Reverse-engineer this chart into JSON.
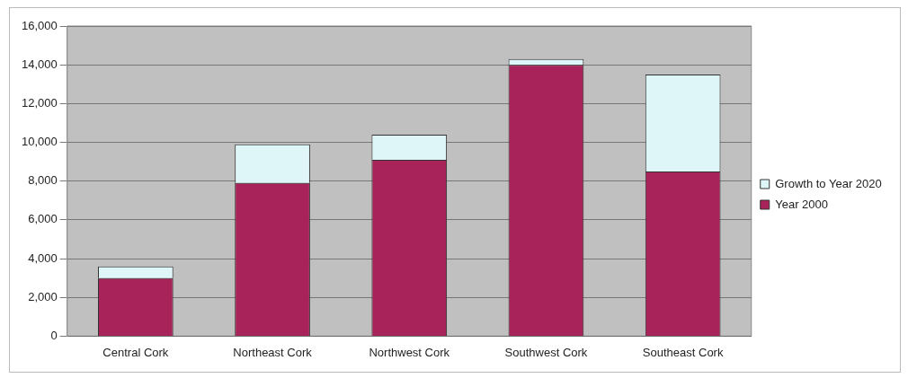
{
  "chart_data": {
    "type": "bar",
    "stacked": true,
    "categories": [
      "Central Cork",
      "Northeast Cork",
      "Northwest Cork",
      "Southwest Cork",
      "Southeast Cork"
    ],
    "series": [
      {
        "name": "Year 2000",
        "color": "#a8235a",
        "values": [
          3000,
          7900,
          9100,
          14000,
          8500
        ]
      },
      {
        "name": "Growth to Year 2020",
        "color": "#dff6f8",
        "values": [
          600,
          2000,
          1300,
          300,
          5000
        ]
      }
    ],
    "ylim": [
      0,
      16000
    ],
    "yticks": [
      0,
      {
        "value": 2000,
        "label": "2,000"
      },
      {
        "value": 4000,
        "label": "4,000"
      },
      {
        "value": 6000,
        "label": "6,000"
      },
      {
        "value": 8000,
        "label": "8,000"
      },
      {
        "value": 10000,
        "label": "10,000"
      },
      {
        "value": 12000,
        "label": "12,000"
      },
      {
        "value": 14000,
        "label": "14,000"
      },
      {
        "value": 16000,
        "label": "16,000"
      }
    ],
    "grid": "y",
    "legend": "right"
  }
}
